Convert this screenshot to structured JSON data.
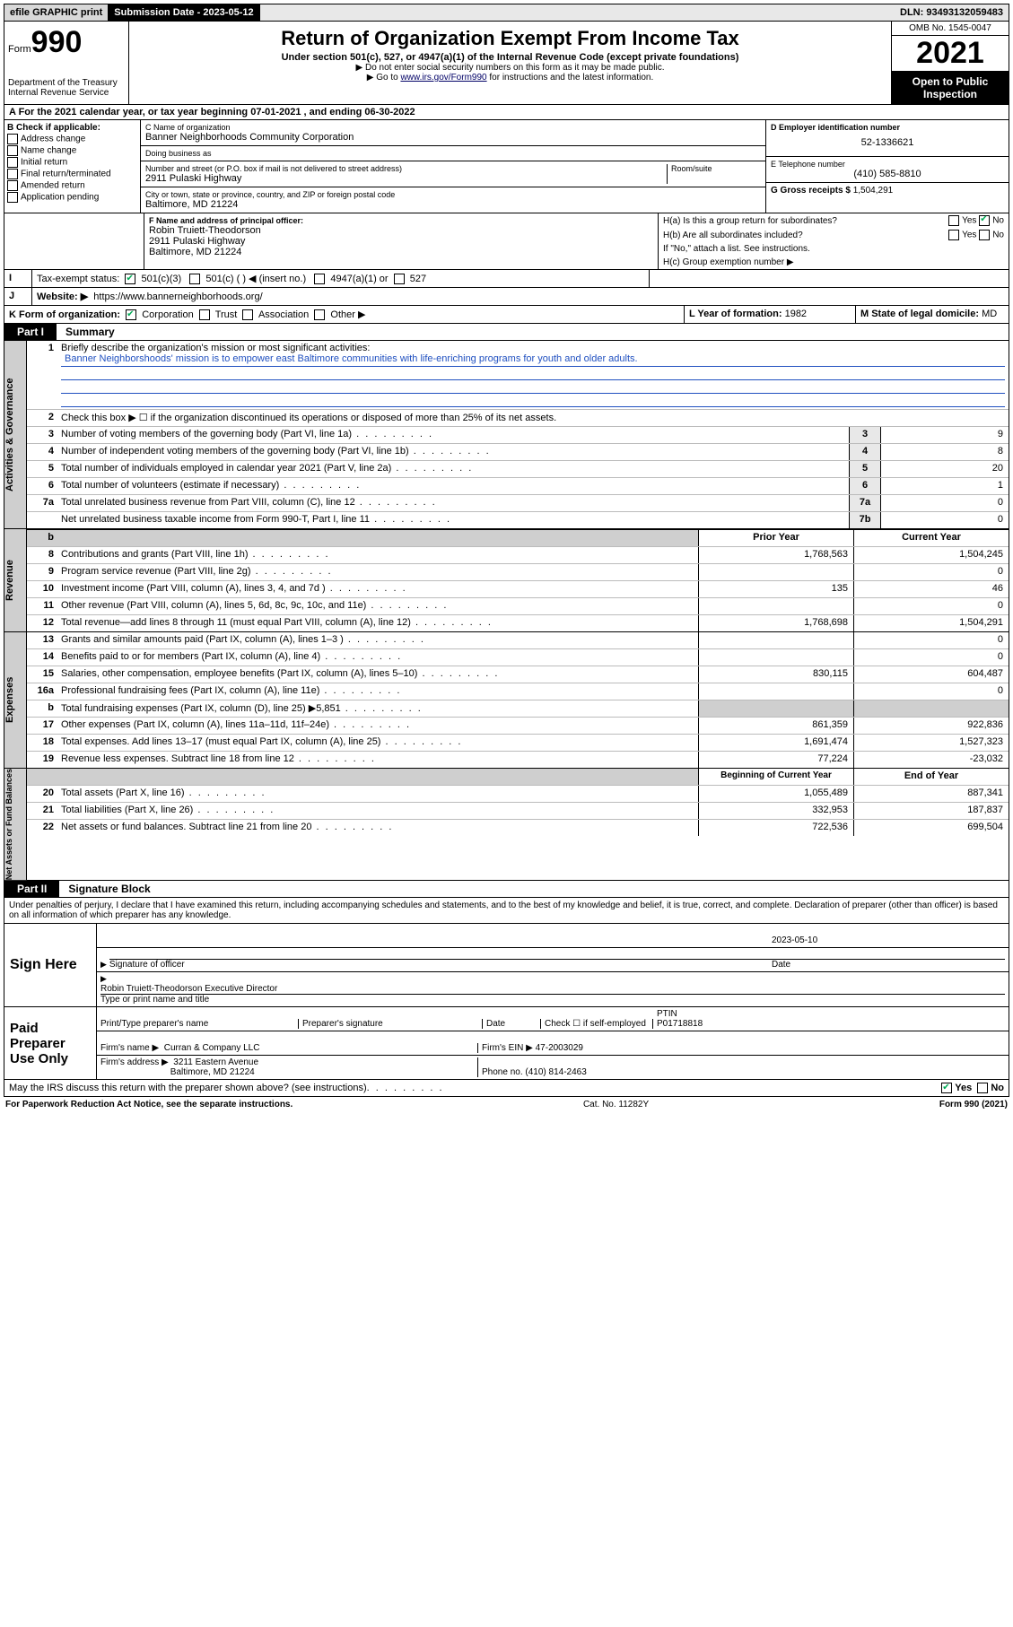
{
  "topbar": {
    "efile": "efile GRAPHIC print",
    "sublabel": "Submission Date - ",
    "subdate": "2023-05-12",
    "dln_label": "DLN: ",
    "dln": "93493132059483"
  },
  "header": {
    "form_prefix": "Form",
    "form_no": "990",
    "dept": "Department of the Treasury\nInternal Revenue Service",
    "title": "Return of Organization Exempt From Income Tax",
    "sub1": "Under section 501(c), 527, or 4947(a)(1) of the Internal Revenue Code (except private foundations)",
    "sub2": "▶ Do not enter social security numbers on this form as it may be made public.",
    "sub3_pre": "▶ Go to ",
    "sub3_link": "www.irs.gov/Form990",
    "sub3_post": " for instructions and the latest information.",
    "omb": "OMB No. 1545-0047",
    "year": "2021",
    "openpub": "Open to Public Inspection"
  },
  "A": {
    "prefix": "A For the 2021 calendar year, or tax year beginning ",
    "begin": "07-01-2021",
    "mid": " , and ending ",
    "end": "06-30-2022"
  },
  "B": {
    "label": "B Check if applicable:",
    "items": [
      "Address change",
      "Name change",
      "Initial return",
      "Final return/terminated",
      "Amended return",
      "Application pending"
    ]
  },
  "C": {
    "name_lbl": "C Name of organization",
    "name": "Banner Neighborhoods Community Corporation",
    "dba_lbl": "Doing business as",
    "dba": "",
    "addr_lbl": "Number and street (or P.O. box if mail is not delivered to street address)",
    "room_lbl": "Room/suite",
    "addr": "2911 Pulaski Highway",
    "city_lbl": "City or town, state or province, country, and ZIP or foreign postal code",
    "city": "Baltimore, MD  21224"
  },
  "D": {
    "lbl": "D Employer identification number",
    "val": "52-1336621"
  },
  "E": {
    "lbl": "E Telephone number",
    "val": "(410) 585-8810"
  },
  "G": {
    "lbl": "G Gross receipts $",
    "val": "1,504,291"
  },
  "F": {
    "lbl": "F Name and address of principal officer:",
    "name": "Robin Truiett-Theodorson",
    "addr1": "2911 Pulaski Highway",
    "addr2": "Baltimore, MD  21224"
  },
  "H": {
    "a": "H(a)  Is this a group return for subordinates?",
    "b": "H(b)  Are all subordinates included?",
    "b2": "If \"No,\" attach a list. See instructions.",
    "c": "H(c)  Group exemption number ▶",
    "yes": "Yes",
    "no": "No"
  },
  "I": {
    "lbl": "Tax-exempt status:",
    "opts": [
      "501(c)(3)",
      "501(c) (  ) ◀ (insert no.)",
      "4947(a)(1) or",
      "527"
    ]
  },
  "J": {
    "lbl": "Website: ▶",
    "val": "https://www.bannerneighborhoods.org/"
  },
  "K": {
    "lbl": "K Form of organization:",
    "opts": [
      "Corporation",
      "Trust",
      "Association",
      "Other ▶"
    ]
  },
  "L": {
    "lbl": "L Year of formation:",
    "val": "1982"
  },
  "M": {
    "lbl": "M State of legal domicile:",
    "val": "MD"
  },
  "part1": {
    "tag": "Part I",
    "title": "Summary"
  },
  "summary": {
    "mission_lbl": "Briefly describe the organization's mission or most significant activities:",
    "mission": "Banner Neighborshoods' mission is to empower east Baltimore communities with life-enriching programs for youth and older adults.",
    "l2": "Check this box ▶ ☐  if the organization discontinued its operations or disposed of more than 25% of its net assets.",
    "rows_top": [
      {
        "n": "3",
        "t": "Number of voting members of the governing body (Part VI, line 1a)",
        "k": "3",
        "v": "9"
      },
      {
        "n": "4",
        "t": "Number of independent voting members of the governing body (Part VI, line 1b)",
        "k": "4",
        "v": "8"
      },
      {
        "n": "5",
        "t": "Total number of individuals employed in calendar year 2021 (Part V, line 2a)",
        "k": "5",
        "v": "20"
      },
      {
        "n": "6",
        "t": "Total number of volunteers (estimate if necessary)",
        "k": "6",
        "v": "1"
      },
      {
        "n": "7a",
        "t": "Total unrelated business revenue from Part VIII, column (C), line 12",
        "k": "7a",
        "v": "0"
      },
      {
        "n": "",
        "t": "Net unrelated business taxable income from Form 990-T, Part I, line 11",
        "k": "7b",
        "v": "0"
      }
    ],
    "col_prior": "Prior Year",
    "col_curr": "Current Year",
    "revenue": [
      {
        "n": "8",
        "t": "Contributions and grants (Part VIII, line 1h)",
        "p": "1,768,563",
        "c": "1,504,245"
      },
      {
        "n": "9",
        "t": "Program service revenue (Part VIII, line 2g)",
        "p": "",
        "c": "0"
      },
      {
        "n": "10",
        "t": "Investment income (Part VIII, column (A), lines 3, 4, and 7d )",
        "p": "135",
        "c": "46"
      },
      {
        "n": "11",
        "t": "Other revenue (Part VIII, column (A), lines 5, 6d, 8c, 9c, 10c, and 11e)",
        "p": "",
        "c": "0"
      },
      {
        "n": "12",
        "t": "Total revenue—add lines 8 through 11 (must equal Part VIII, column (A), line 12)",
        "p": "1,768,698",
        "c": "1,504,291"
      }
    ],
    "expenses": [
      {
        "n": "13",
        "t": "Grants and similar amounts paid (Part IX, column (A), lines 1–3 )",
        "p": "",
        "c": "0"
      },
      {
        "n": "14",
        "t": "Benefits paid to or for members (Part IX, column (A), line 4)",
        "p": "",
        "c": "0"
      },
      {
        "n": "15",
        "t": "Salaries, other compensation, employee benefits (Part IX, column (A), lines 5–10)",
        "p": "830,115",
        "c": "604,487"
      },
      {
        "n": "16a",
        "t": "Professional fundraising fees (Part IX, column (A), line 11e)",
        "p": "",
        "c": "0"
      },
      {
        "n": "b",
        "t": "Total fundraising expenses (Part IX, column (D), line 25) ▶5,851",
        "p": "SHADE",
        "c": "SHADE"
      },
      {
        "n": "17",
        "t": "Other expenses (Part IX, column (A), lines 11a–11d, 11f–24e)",
        "p": "861,359",
        "c": "922,836"
      },
      {
        "n": "18",
        "t": "Total expenses. Add lines 13–17 (must equal Part IX, column (A), line 25)",
        "p": "1,691,474",
        "c": "1,527,323"
      },
      {
        "n": "19",
        "t": "Revenue less expenses. Subtract line 18 from line 12",
        "p": "77,224",
        "c": "-23,032"
      }
    ],
    "col_begin": "Beginning of Current Year",
    "col_end": "End of Year",
    "netassets": [
      {
        "n": "20",
        "t": "Total assets (Part X, line 16)",
        "p": "1,055,489",
        "c": "887,341"
      },
      {
        "n": "21",
        "t": "Total liabilities (Part X, line 26)",
        "p": "332,953",
        "c": "187,837"
      },
      {
        "n": "22",
        "t": "Net assets or fund balances. Subtract line 21 from line 20",
        "p": "722,536",
        "c": "699,504"
      }
    ]
  },
  "vlabels": {
    "gov": "Activities & Governance",
    "rev": "Revenue",
    "exp": "Expenses",
    "net": "Net Assets or Fund Balances"
  },
  "part2": {
    "tag": "Part II",
    "title": "Signature Block"
  },
  "perjury": "Under penalties of perjury, I declare that I have examined this return, including accompanying schedules and statements, and to the best of my knowledge and belief, it is true, correct, and complete. Declaration of preparer (other than officer) is based on all information of which preparer has any knowledge.",
  "sign": {
    "here": "Sign Here",
    "sig_lbl": "Signature of officer",
    "date_lbl": "Date",
    "date": "2023-05-10",
    "name": "Robin Truiett-Theodorson  Executive Director",
    "name_lbl": "Type or print name and title"
  },
  "prep": {
    "title": "Paid Preparer Use Only",
    "cols": [
      "Print/Type preparer's name",
      "Preparer's signature",
      "Date"
    ],
    "check_lbl": "Check ☐ if self-employed",
    "ptin_lbl": "PTIN",
    "ptin": "P01718818",
    "firm_name_lbl": "Firm's name    ▶",
    "firm_name": "Curran & Company LLC",
    "firm_ein_lbl": "Firm's EIN ▶",
    "firm_ein": "47-2003029",
    "firm_addr_lbl": "Firm's address ▶",
    "firm_addr1": "3211 Eastern Avenue",
    "firm_addr2": "Baltimore, MD  21224",
    "phone_lbl": "Phone no.",
    "phone": "(410) 814-2463"
  },
  "discuss": {
    "q": "May the IRS discuss this return with the preparer shown above? (see instructions)",
    "yes": "Yes",
    "no": "No"
  },
  "footer": {
    "left": "For Paperwork Reduction Act Notice, see the separate instructions.",
    "mid": "Cat. No. 11282Y",
    "right": "Form 990 (2021)"
  }
}
